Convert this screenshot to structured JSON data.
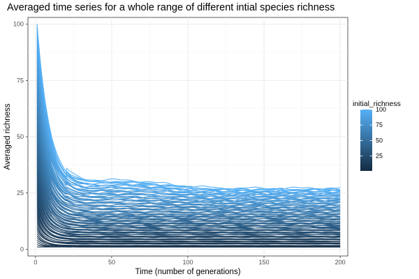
{
  "chart_data": {
    "type": "line",
    "title": "Averaged time series for a whole range of different intial species richness",
    "xlabel": "Time (number of generations)",
    "ylabel": "Averaged richness",
    "xlim": [
      -5,
      205
    ],
    "ylim": [
      -3,
      103
    ],
    "x_ticks": [
      "0",
      "50",
      "100",
      "150",
      "200"
    ],
    "y_ticks": [
      "0",
      "25",
      "50",
      "75",
      "100"
    ],
    "grid": true,
    "legend": {
      "title": "initial_richness",
      "position": "right",
      "type": "colorbar",
      "range": [
        1,
        100
      ],
      "ticks": [
        "25",
        "50",
        "75",
        "100"
      ],
      "color_low": "#132B43",
      "color_high": "#56B1F7"
    },
    "series_description": {
      "count": 100,
      "initial_richness_range": [
        1,
        100
      ],
      "x_range": [
        1,
        200
      ],
      "sample_final_values": [
        {
          "initial_richness": 1,
          "final": 1
        },
        {
          "initial_richness": 10,
          "final": 3
        },
        {
          "initial_richness": 25,
          "final": 8
        },
        {
          "initial_richness": 50,
          "final": 14
        },
        {
          "initial_richness": 75,
          "final": 21
        },
        {
          "initial_richness": 100,
          "final": 27
        }
      ]
    }
  }
}
